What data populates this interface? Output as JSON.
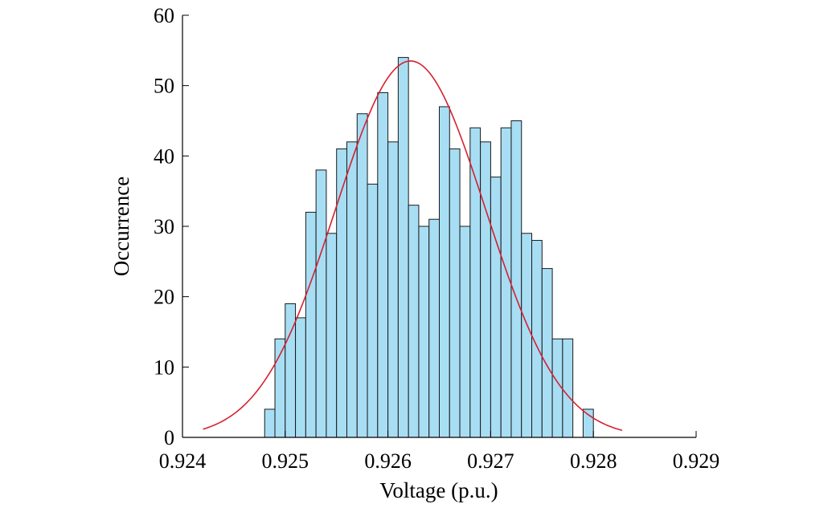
{
  "chart_data": {
    "type": "bar",
    "title": "",
    "xlabel": "Voltage (p.u.)",
    "ylabel": "Occurrence",
    "xlim": [
      0.924,
      0.929
    ],
    "ylim": [
      0,
      60
    ],
    "xticks": [
      "0.924",
      "0.925",
      "0.926",
      "0.927",
      "0.928",
      "0.929"
    ],
    "yticks": [
      "0",
      "10",
      "20",
      "30",
      "40",
      "50",
      "60"
    ],
    "grid": false,
    "bar_color": "#a8def4",
    "fit_color": "#d62030",
    "bin_start": 0.9248,
    "bin_width": 0.0001,
    "values": [
      4,
      14,
      19,
      17,
      32,
      38,
      29,
      41,
      42,
      46,
      36,
      49,
      42,
      54,
      33,
      30,
      31,
      47,
      41,
      30,
      44,
      42,
      37,
      44,
      45,
      29,
      28,
      24,
      14,
      14,
      0,
      4
    ],
    "fit": {
      "type": "normal",
      "mean": 0.92622,
      "std": 0.00073,
      "peak": 53.5,
      "range": [
        0.9242,
        0.92828
      ]
    }
  }
}
